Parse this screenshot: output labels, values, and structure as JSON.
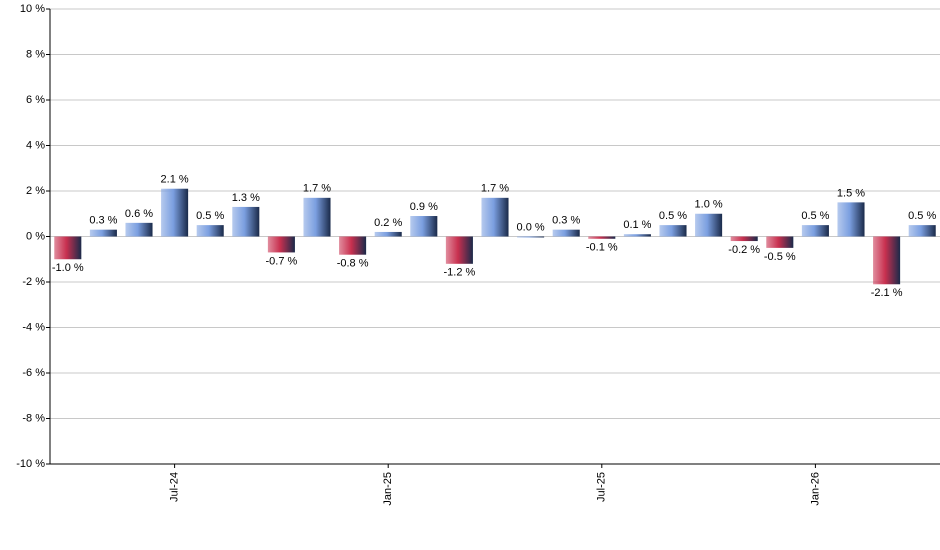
{
  "chart_data": {
    "type": "bar",
    "categories": [
      null,
      null,
      null,
      "Jul-24",
      null,
      null,
      null,
      null,
      null,
      "Jan-25",
      null,
      null,
      null,
      null,
      null,
      "Jul-25",
      null,
      null,
      null,
      null,
      null,
      "Jan-26",
      null,
      null,
      null
    ],
    "values": [
      -1.0,
      0.3,
      0.6,
      2.1,
      0.5,
      1.3,
      -0.7,
      1.7,
      -0.8,
      0.2,
      0.9,
      -1.2,
      1.7,
      0.0,
      0.3,
      -0.1,
      0.1,
      0.5,
      1.0,
      -0.2,
      -0.5,
      0.5,
      1.5,
      -2.1,
      0.5
    ],
    "value_labels": [
      "-1.0 %",
      "0.3 %",
      "0.6 %",
      "2.1 %",
      "0.5 %",
      "1.3 %",
      "-0.7 %",
      "1.7 %",
      "-0.8 %",
      "0.2 %",
      "0.9 %",
      "-1.2 %",
      "1.7 %",
      "0.0 %",
      "0.3 %",
      "-0.1 %",
      "0.1 %",
      "0.5 %",
      "1.0 %",
      "-0.2 %",
      "-0.5 %",
      "0.5 %",
      "1.5 %",
      "-2.1 %",
      "0.5 %"
    ],
    "positive_color": "#7b9fe0",
    "negative_color": "#c8304f",
    "ylim": [
      -10,
      10
    ],
    "yticks": [
      {
        "value": -10,
        "label": "-10 %"
      },
      {
        "value": -8,
        "label": "-8 %"
      },
      {
        "value": -6,
        "label": "-6 %"
      },
      {
        "value": -4,
        "label": "-4 %"
      },
      {
        "value": -2,
        "label": "-2 %"
      },
      {
        "value": 0,
        "label": "0 %"
      },
      {
        "value": 2,
        "label": "2 %"
      },
      {
        "value": 4,
        "label": "4 %"
      },
      {
        "value": 6,
        "label": "6 %"
      },
      {
        "value": 8,
        "label": "8 %"
      },
      {
        "value": 10,
        "label": "10 %"
      }
    ],
    "grid": true
  }
}
